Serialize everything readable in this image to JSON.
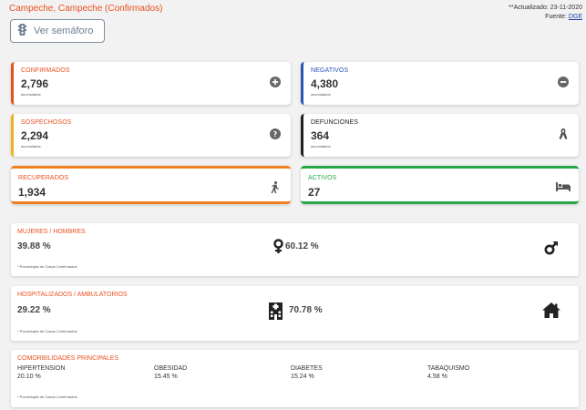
{
  "header": {
    "title": "Campeche, Campeche (Confirmados)",
    "updated": "**Actualizado: 23-11-2020",
    "source_prefix": "Fuente: ",
    "source_link": "DGE"
  },
  "semaforo_button": {
    "label": "Ver semáforo",
    "icon": "traffic-light-icon"
  },
  "cards": {
    "confirmados": {
      "label": "CONFIRMADOS",
      "value": "2,796",
      "sub": "acumulados",
      "color": "#e8501f",
      "icon": "plus-circle-icon"
    },
    "negativos": {
      "label": "NEGATIVOS",
      "value": "4,380",
      "sub": "acumulados",
      "color": "#2a55b5",
      "icon": "minus-circle-icon"
    },
    "sospechosos": {
      "label": "SOSPECHOSOS",
      "value": "2,294",
      "sub": "acumulados",
      "color": "#f2b01e",
      "icon": "question-circle-icon"
    },
    "defunciones": {
      "label": "DEFUNCIONES",
      "value": "364",
      "sub": "acumulados",
      "color": "#222222",
      "icon": "ribbon-icon"
    },
    "recuperados": {
      "label": "RECUPERADOS",
      "value": "1,934",
      "color": "#f07f1e",
      "icon": "walking-icon"
    },
    "activos": {
      "label": "ACTIVOS",
      "value": "27",
      "color": "#28a745",
      "icon": "bed-icon"
    }
  },
  "gender": {
    "label": "MUJERES / HOMBRES",
    "women": "39.88 %",
    "men": "60.12 %",
    "note": "* Porcentajes de Casos Confirmados"
  },
  "hospital": {
    "label": "HOSPITALIZADOS / AMBULATORIOS",
    "hospitalized": "29.22 %",
    "ambulatory": "70.78 %",
    "note": "* Porcentajes de Casos Confirmados"
  },
  "comorbid": {
    "label": "COMORBILIDADES PRINCIPALES",
    "items": [
      {
        "name": "HIPERTENSION",
        "value": "20.10 %"
      },
      {
        "name": "OBESIDAD",
        "value": "15.45 %"
      },
      {
        "name": "DIABETES",
        "value": "15.24 %"
      },
      {
        "name": "TABAQUISMO",
        "value": "4.58 %"
      }
    ],
    "note": "* Porcentajes de Casos Confirmados"
  }
}
